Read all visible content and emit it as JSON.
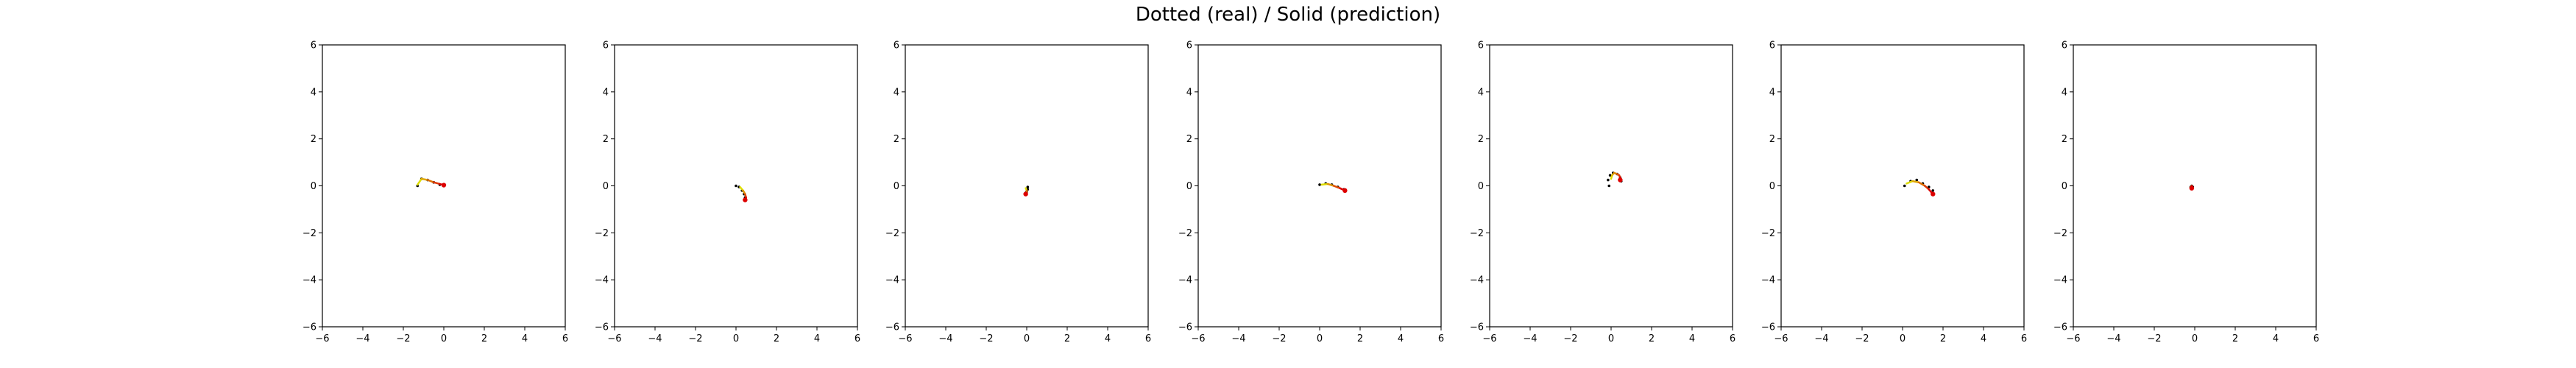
{
  "title": "Dotted (real) / Solid (prediction)",
  "colors": {
    "frame": "#000000",
    "real_dots": "#000000",
    "prediction_start": "#dddd00",
    "prediction_end": "#dd0000"
  },
  "chart_data": [
    {
      "type": "line",
      "xlim": [
        -6,
        6
      ],
      "ylim": [
        -6,
        6
      ],
      "xticks": [
        -6,
        -4,
        -2,
        0,
        2,
        4,
        6
      ],
      "yticks": [
        -6,
        -4,
        -2,
        0,
        2,
        4,
        6
      ],
      "grid": false,
      "series": [
        {
          "style": "dotted",
          "x": [
            -1.3,
            -1.1,
            -0.8,
            -0.5,
            -0.2,
            0.0
          ],
          "y": [
            0.0,
            0.3,
            0.25,
            0.15,
            0.05,
            0.0
          ]
        },
        {
          "style": "solid",
          "x": [
            -1.3,
            -1.1,
            -0.8,
            -0.5,
            -0.2,
            0.0
          ],
          "y": [
            0.05,
            0.3,
            0.25,
            0.15,
            0.08,
            0.03
          ]
        }
      ]
    },
    {
      "type": "line",
      "xlim": [
        -6,
        6
      ],
      "ylim": [
        -6,
        6
      ],
      "xticks": [
        -6,
        -4,
        -2,
        0,
        2,
        4,
        6
      ],
      "yticks": [
        -6,
        -4,
        -2,
        0,
        2,
        4,
        6
      ],
      "grid": false,
      "series": [
        {
          "style": "dotted",
          "x": [
            0.0,
            0.15,
            0.3,
            0.4,
            0.45
          ],
          "y": [
            0.0,
            -0.05,
            -0.2,
            -0.35,
            -0.5
          ]
        },
        {
          "style": "solid",
          "x": [
            0.2,
            0.35,
            0.45,
            0.5,
            0.45
          ],
          "y": [
            -0.05,
            -0.2,
            -0.35,
            -0.5,
            -0.6
          ]
        }
      ]
    },
    {
      "type": "line",
      "xlim": [
        -6,
        6
      ],
      "ylim": [
        -6,
        6
      ],
      "xticks": [
        -6,
        -4,
        -2,
        0,
        2,
        4,
        6
      ],
      "yticks": [
        -6,
        -4,
        -2,
        0,
        2,
        4,
        6
      ],
      "grid": false,
      "series": [
        {
          "style": "dotted",
          "x": [
            0.05,
            0.05,
            0.0,
            -0.05
          ],
          "y": [
            -0.05,
            -0.15,
            -0.25,
            -0.3
          ]
        },
        {
          "style": "solid",
          "x": [
            -0.05,
            0.0,
            0.0,
            -0.05
          ],
          "y": [
            -0.1,
            -0.2,
            -0.3,
            -0.35
          ]
        }
      ]
    },
    {
      "type": "line",
      "xlim": [
        -6,
        6
      ],
      "ylim": [
        -6,
        6
      ],
      "xticks": [
        -6,
        -4,
        -2,
        0,
        2,
        4,
        6
      ],
      "yticks": [
        -6,
        -4,
        -2,
        0,
        2,
        4,
        6
      ],
      "grid": false,
      "series": [
        {
          "style": "dotted",
          "x": [
            0.0,
            0.3,
            0.6,
            0.9,
            1.2
          ],
          "y": [
            0.05,
            0.1,
            0.05,
            -0.05,
            -0.15
          ]
        },
        {
          "style": "solid",
          "x": [
            0.1,
            0.4,
            0.7,
            1.0,
            1.25
          ],
          "y": [
            0.05,
            0.08,
            0.0,
            -0.1,
            -0.2
          ]
        }
      ]
    },
    {
      "type": "line",
      "xlim": [
        -6,
        6
      ],
      "ylim": [
        -6,
        6
      ],
      "xticks": [
        -6,
        -4,
        -2,
        0,
        2,
        4,
        6
      ],
      "yticks": [
        -6,
        -4,
        -2,
        0,
        2,
        4,
        6
      ],
      "grid": false,
      "series": [
        {
          "style": "dotted",
          "x": [
            -0.1,
            -0.15,
            -0.05,
            0.1,
            0.3,
            0.45,
            0.5
          ],
          "y": [
            0.0,
            0.25,
            0.45,
            0.55,
            0.5,
            0.35,
            0.2
          ]
        },
        {
          "style": "solid",
          "x": [
            0.0,
            0.05,
            0.15,
            0.3,
            0.4,
            0.45,
            0.45
          ],
          "y": [
            0.3,
            0.45,
            0.55,
            0.5,
            0.45,
            0.35,
            0.25
          ]
        }
      ]
    },
    {
      "type": "line",
      "xlim": [
        -6,
        6
      ],
      "ylim": [
        -6,
        6
      ],
      "xticks": [
        -6,
        -4,
        -2,
        0,
        2,
        4,
        6
      ],
      "yticks": [
        -6,
        -4,
        -2,
        0,
        2,
        4,
        6
      ],
      "grid": false,
      "series": [
        {
          "style": "dotted",
          "x": [
            0.1,
            0.4,
            0.7,
            1.0,
            1.3,
            1.5
          ],
          "y": [
            0.0,
            0.2,
            0.25,
            0.1,
            -0.05,
            -0.2
          ]
        },
        {
          "style": "solid",
          "x": [
            0.2,
            0.5,
            0.8,
            1.1,
            1.3,
            1.5
          ],
          "y": [
            0.1,
            0.2,
            0.15,
            0.0,
            -0.15,
            -0.35
          ]
        }
      ]
    },
    {
      "type": "line",
      "xlim": [
        -6,
        6
      ],
      "ylim": [
        -6,
        6
      ],
      "xticks": [
        -6,
        -4,
        -2,
        0,
        2,
        4,
        6
      ],
      "yticks": [
        -6,
        -4,
        -2,
        0,
        2,
        4,
        6
      ],
      "grid": false,
      "series": [
        {
          "style": "dotted",
          "x": [
            -0.15,
            -0.1,
            -0.2
          ],
          "y": [
            0.0,
            -0.05,
            -0.05
          ]
        },
        {
          "style": "solid",
          "x": [
            -0.2,
            -0.15,
            -0.15
          ],
          "y": [
            -0.05,
            0.0,
            -0.1
          ]
        }
      ]
    }
  ]
}
